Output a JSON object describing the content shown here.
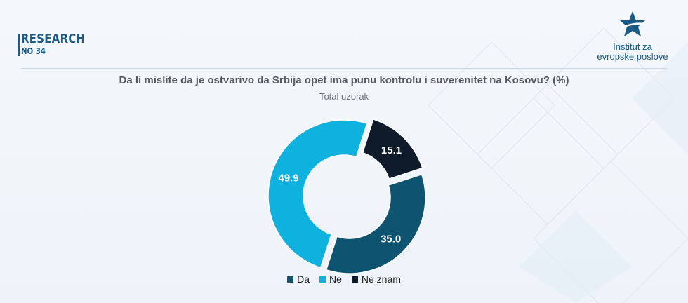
{
  "brand": {
    "title": "RESEARCH",
    "number": "NO 34"
  },
  "logo": {
    "line1": "Institut za",
    "line2": "evropske poslove",
    "icon": "star-logo-icon"
  },
  "chart_data": {
    "type": "pie",
    "variant": "donut",
    "title": "Da li mislite da je ostvarivo da Srbija opet ima punu kontrolu i suverenitet na Kosovu? (%)",
    "subtitle": "Total uzorak",
    "legend_position": "bottom",
    "categories": [
      "Da",
      "Ne",
      "Ne znam"
    ],
    "values": [
      35.0,
      49.9,
      15.1
    ],
    "colors": [
      "#0e5470",
      "#0fb2df",
      "#0f1b2b"
    ],
    "labels": [
      "35.0",
      "49.9",
      "15.1"
    ]
  },
  "legend": [
    {
      "label": "Da",
      "color": "#0e5470"
    },
    {
      "label": "Ne",
      "color": "#0fb2df"
    },
    {
      "label": "Ne znam",
      "color": "#0f1b2b"
    }
  ]
}
